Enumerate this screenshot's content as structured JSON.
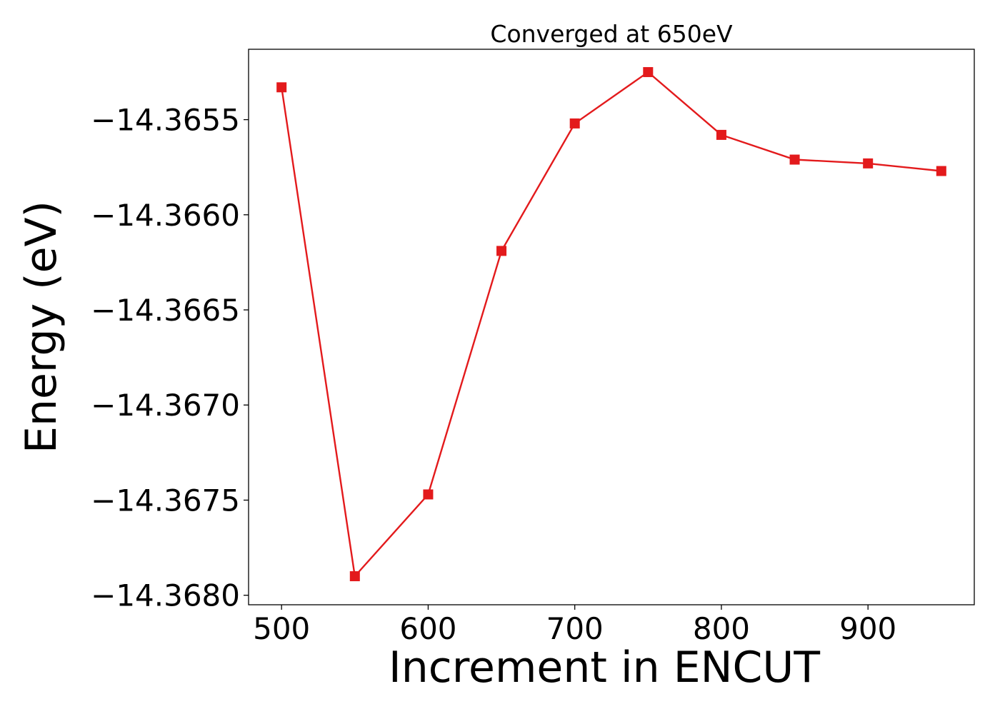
{
  "chart_data": {
    "type": "line",
    "title": "Converged at 650eV",
    "xlabel": "Increment in ENCUT",
    "ylabel": "Energy (eV)",
    "xlim": [
      477.5,
      972.5
    ],
    "ylim": [
      -14.36805,
      -14.36513
    ],
    "xticks": [
      500,
      600,
      700,
      800,
      900
    ],
    "xtick_labels": [
      "500",
      "600",
      "700",
      "800",
      "900"
    ],
    "yticks": [
      -14.3655,
      -14.366,
      -14.3665,
      -14.367,
      -14.3675,
      -14.368
    ],
    "ytick_labels": [
      "−14.3655",
      "−14.3660",
      "−14.3665",
      "−14.3670",
      "−14.3675",
      "−14.3680"
    ],
    "grid": false,
    "series": [
      {
        "color": "#e31a1c",
        "marker": "square",
        "x": [
          500,
          550,
          600,
          650,
          700,
          750,
          800,
          850,
          900,
          950
        ],
        "y": [
          -14.36533,
          -14.3679,
          -14.36747,
          -14.36619,
          -14.36552,
          -14.36525,
          -14.36558,
          -14.36571,
          -14.36573,
          -14.36577
        ]
      }
    ]
  }
}
